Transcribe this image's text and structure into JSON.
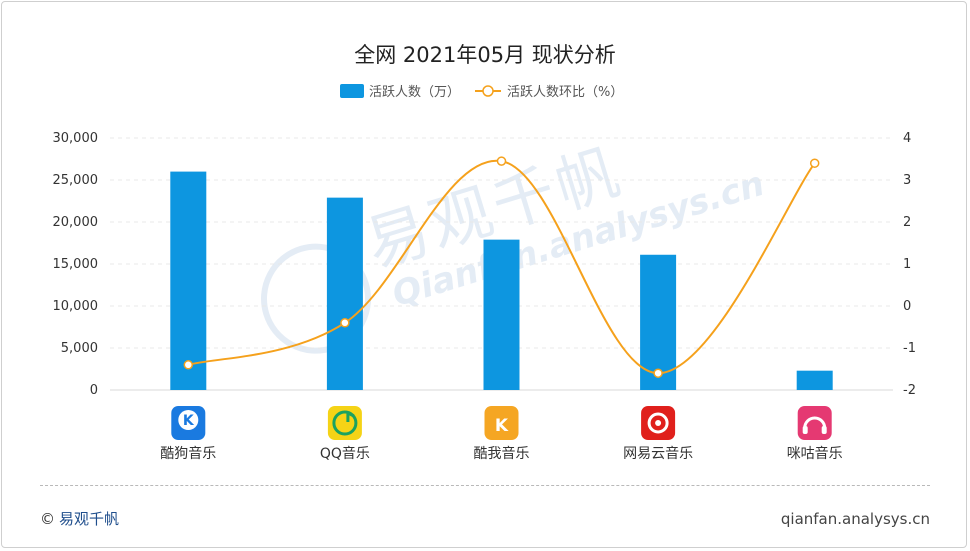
{
  "chart_data": {
    "type": "bar+line",
    "title": "全网 2021年05月 现状分析",
    "categories": [
      "酷狗音乐",
      "QQ音乐",
      "酷我音乐",
      "网易云音乐",
      "咪咕音乐"
    ],
    "series": [
      {
        "name": "活跃人数（万）",
        "type": "bar",
        "axis": "left",
        "color": "#0d96e0",
        "values": [
          26000,
          22900,
          17900,
          16100,
          2300
        ]
      },
      {
        "name": "活跃人数环比（%）",
        "type": "line",
        "axis": "right",
        "color": "#f5a11c",
        "values": [
          -1.4,
          -0.4,
          3.45,
          -1.6,
          3.4
        ]
      }
    ],
    "y_left": {
      "min": 0,
      "max": 30000,
      "ticks": [
        "30,000",
        "25,000",
        "20,000",
        "15,000",
        "10,000",
        "5,000",
        "0"
      ],
      "tick_values": [
        30000,
        25000,
        20000,
        15000,
        10000,
        5000,
        0
      ]
    },
    "y_right": {
      "min": -2,
      "max": 4,
      "ticks": [
        "4",
        "3",
        "2",
        "1",
        "0",
        "-1",
        "-2"
      ],
      "tick_values": [
        4,
        3,
        2,
        1,
        0,
        -1,
        -2
      ]
    },
    "grid": true,
    "legend_position": "top-center",
    "icons": [
      "kugou-icon",
      "qq-music-icon",
      "kuwo-icon",
      "netease-music-icon",
      "migu-music-icon"
    ],
    "icon_colors": [
      "#1a7ae0",
      "#f5d316",
      "#f5a623",
      "#e0201c",
      "#e53972"
    ]
  },
  "watermark": {
    "cn": "易观千帆",
    "en": "Qianfan.analysys.cn"
  },
  "footer": {
    "copyright": "©",
    "brand": "易观千帆",
    "site": "qianfan.analysys.cn"
  }
}
